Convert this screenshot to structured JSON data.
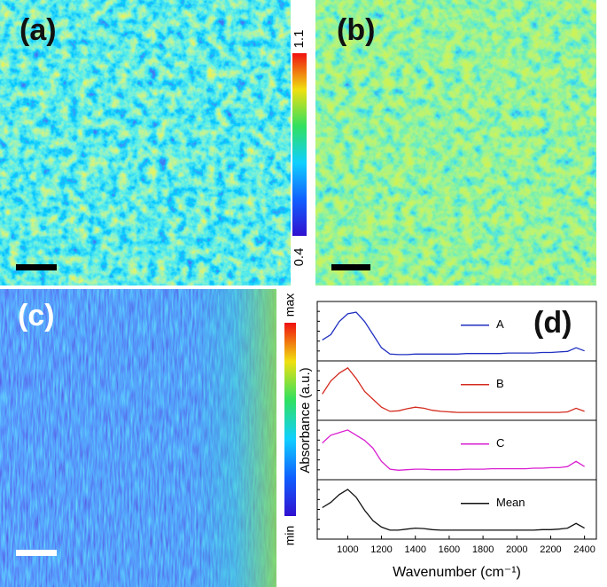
{
  "panel_labels": [
    "(a)",
    "(b)",
    "(c)",
    "(d)"
  ],
  "colorbar_top": {
    "max": 1.1,
    "min": 0.4
  },
  "colorbar_bottom": {
    "max": "max",
    "min": "min"
  },
  "chart_data": {
    "type": "line",
    "xlabel": "Wavenumber (cm⁻¹)",
    "ylabel": "Absorbance (a.u.)",
    "xlim": [
      820,
      2470
    ],
    "ylim": [
      0,
      1
    ],
    "xticks": [
      1000,
      1200,
      1400,
      1600,
      1800,
      2000,
      2200,
      2400
    ],
    "x": [
      850,
      900,
      950,
      1000,
      1050,
      1100,
      1150,
      1200,
      1250,
      1300,
      1350,
      1400,
      1450,
      1500,
      1550,
      1600,
      1650,
      1700,
      1750,
      1800,
      1850,
      1900,
      1950,
      2000,
      2050,
      2100,
      2150,
      2200,
      2250,
      2300,
      2350,
      2400
    ],
    "series": [
      {
        "name": "A",
        "color": "#1f2fbf",
        "values": [
          0.35,
          0.45,
          0.7,
          0.85,
          0.88,
          0.7,
          0.45,
          0.2,
          0.08,
          0.07,
          0.07,
          0.08,
          0.08,
          0.08,
          0.08,
          0.08,
          0.08,
          0.09,
          0.09,
          0.09,
          0.09,
          0.09,
          0.1,
          0.1,
          0.1,
          0.1,
          0.11,
          0.11,
          0.12,
          0.13,
          0.2,
          0.14
        ]
      },
      {
        "name": "B",
        "color": "#d42a1e",
        "values": [
          0.45,
          0.7,
          0.85,
          0.95,
          0.75,
          0.5,
          0.35,
          0.2,
          0.12,
          0.13,
          0.17,
          0.2,
          0.18,
          0.14,
          0.12,
          0.11,
          0.1,
          0.1,
          0.1,
          0.1,
          0.1,
          0.1,
          0.1,
          0.1,
          0.1,
          0.1,
          0.1,
          0.1,
          0.1,
          0.11,
          0.18,
          0.12
        ]
      },
      {
        "name": "C",
        "color": "#d91fd0",
        "values": [
          0.65,
          0.8,
          0.85,
          0.9,
          0.8,
          0.7,
          0.55,
          0.3,
          0.15,
          0.13,
          0.14,
          0.15,
          0.15,
          0.14,
          0.14,
          0.14,
          0.14,
          0.15,
          0.15,
          0.15,
          0.16,
          0.16,
          0.16,
          0.16,
          0.16,
          0.17,
          0.17,
          0.18,
          0.18,
          0.2,
          0.3,
          0.2
        ]
      },
      {
        "name": "Mean",
        "color": "#111111",
        "values": [
          0.55,
          0.65,
          0.8,
          0.9,
          0.75,
          0.5,
          0.3,
          0.18,
          0.12,
          0.12,
          0.14,
          0.16,
          0.15,
          0.13,
          0.12,
          0.12,
          0.12,
          0.12,
          0.12,
          0.12,
          0.12,
          0.12,
          0.12,
          0.12,
          0.12,
          0.12,
          0.13,
          0.13,
          0.14,
          0.16,
          0.25,
          0.16
        ]
      }
    ]
  }
}
